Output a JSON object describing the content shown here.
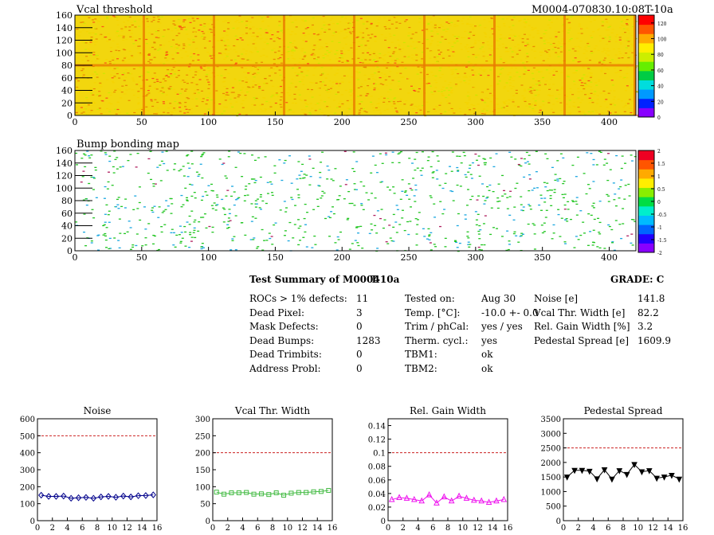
{
  "header": {
    "module_id": "M0004-070830.10:08T-10a"
  },
  "maps": [
    {
      "title": "Vcal threshold",
      "x_ticks": [
        "0",
        "50",
        "100",
        "150",
        "200",
        "250",
        "300",
        "350",
        "400"
      ],
      "y_ticks": [
        "0",
        "20",
        "40",
        "60",
        "80",
        "100",
        "120",
        "140",
        "160"
      ],
      "colorbar_ticks": [
        "0",
        "20",
        "40",
        "60",
        "80",
        "100",
        "120"
      ],
      "roc_grid": {
        "columns": 8,
        "rows": 2
      },
      "colors": [
        "#f5d200",
        "#e87a00",
        "#c8e800",
        "#ff3a1a"
      ]
    },
    {
      "title": "Bump bonding map",
      "x_ticks": [
        "0",
        "50",
        "100",
        "150",
        "200",
        "250",
        "300",
        "350",
        "400"
      ],
      "y_ticks": [
        "0",
        "20",
        "40",
        "60",
        "80",
        "100",
        "120",
        "140",
        "160"
      ],
      "colorbar_ticks": [
        "-2",
        "-1.5",
        "-1",
        "-0.5",
        "0",
        "0.5",
        "1",
        "1.5",
        "2"
      ],
      "colors": [
        "#22c522",
        "#1aa7e0",
        "#b02060"
      ]
    }
  ],
  "summary": {
    "title": "Test Summary of M0004",
    "subtitle": "T-10a",
    "grade": "GRADE:  C",
    "col1": [
      {
        "label": "ROCs > 1% defects:",
        "value": "11"
      },
      {
        "label": "Dead Pixel:",
        "value": "3"
      },
      {
        "label": "Mask Defects:",
        "value": "0"
      },
      {
        "label": "Dead Bumps:",
        "value": "1283"
      },
      {
        "label": "Dead Trimbits:",
        "value": "0"
      },
      {
        "label": "Address Probl:",
        "value": "0"
      }
    ],
    "col2": [
      {
        "label": "Tested on:",
        "value": "Aug 30"
      },
      {
        "label": "Temp. [°C]:",
        "value": "-10.0 +- 0.0"
      },
      {
        "label": "Trim / phCal:",
        "value": "yes / yes"
      },
      {
        "label": "Therm. cycl.:",
        "value": "yes"
      },
      {
        "label": "TBM1:",
        "value": "ok"
      },
      {
        "label": "TBM2:",
        "value": "ok"
      }
    ],
    "col3": [
      {
        "label": "Noise [e]",
        "value": "141.8"
      },
      {
        "label": "Vcal Thr. Width [e]",
        "value": "82.2"
      },
      {
        "label": "Rel. Gain Width [%]",
        "value": "3.2"
      },
      {
        "label": "Pedestal Spread [e]",
        "value": "1609.9"
      }
    ]
  },
  "chart_data": [
    {
      "type": "line",
      "title": "Noise",
      "color": "#00008b",
      "marker": "diamond",
      "x": [
        0,
        1,
        2,
        3,
        4,
        5,
        6,
        7,
        8,
        9,
        10,
        11,
        12,
        13,
        14,
        15
      ],
      "values": [
        150,
        143,
        143,
        145,
        132,
        135,
        137,
        132,
        140,
        143,
        138,
        145,
        140,
        147,
        148,
        152
      ],
      "xlim": [
        0,
        16
      ],
      "ylim": [
        0,
        600
      ],
      "x_ticks": [
        0,
        2,
        4,
        6,
        8,
        10,
        12,
        14,
        16
      ],
      "y_ticks": [
        0,
        100,
        200,
        300,
        400,
        500,
        600
      ],
      "y_tick_labels": [
        "0",
        "100",
        "200",
        "300",
        "400",
        "500",
        "600"
      ],
      "threshold": 500
    },
    {
      "type": "line",
      "title": "Vcal Thr. Width",
      "color": "#44bb44",
      "marker": "square",
      "x": [
        0,
        1,
        2,
        3,
        4,
        5,
        6,
        7,
        8,
        9,
        10,
        11,
        12,
        13,
        14,
        15
      ],
      "values": [
        84,
        78,
        82,
        82,
        83,
        78,
        79,
        77,
        82,
        75,
        81,
        83,
        83,
        85,
        86,
        89
      ],
      "xlim": [
        0,
        16
      ],
      "ylim": [
        0,
        300
      ],
      "x_ticks": [
        0,
        2,
        4,
        6,
        8,
        10,
        12,
        14,
        16
      ],
      "y_ticks": [
        0,
        50,
        100,
        150,
        200,
        250,
        300
      ],
      "y_tick_labels": [
        "0",
        "50",
        "100",
        "150",
        "200",
        "250",
        "300"
      ],
      "threshold": 200
    },
    {
      "type": "line",
      "title": "Rel. Gain Width",
      "color": "#ee11ee",
      "marker": "triangle",
      "x": [
        0,
        1,
        2,
        3,
        4,
        5,
        6,
        7,
        8,
        9,
        10,
        11,
        12,
        13,
        14,
        15
      ],
      "values": [
        0.031,
        0.034,
        0.033,
        0.031,
        0.029,
        0.038,
        0.026,
        0.035,
        0.029,
        0.036,
        0.033,
        0.03,
        0.029,
        0.027,
        0.029,
        0.031
      ],
      "xlim": [
        0,
        16
      ],
      "ylim": [
        0,
        0.15
      ],
      "x_ticks": [
        0,
        2,
        4,
        6,
        8,
        10,
        12,
        14,
        16
      ],
      "y_ticks": [
        0,
        0.02,
        0.04,
        0.06,
        0.08,
        0.1,
        0.12,
        0.14
      ],
      "y_tick_labels": [
        "0",
        "0.02",
        "0.04",
        "0.06",
        "0.08",
        "0.1",
        "0.12",
        "0.14"
      ],
      "threshold": 0.1
    },
    {
      "type": "line",
      "title": "Pedestal Spread",
      "color": "#000000",
      "marker": "triangle-down",
      "x": [
        0,
        1,
        2,
        3,
        4,
        5,
        6,
        7,
        8,
        9,
        10,
        11,
        12,
        13,
        14,
        15
      ],
      "values": [
        1500,
        1730,
        1730,
        1700,
        1440,
        1750,
        1430,
        1720,
        1590,
        1930,
        1680,
        1720,
        1460,
        1500,
        1560,
        1430
      ],
      "xlim": [
        0,
        16
      ],
      "ylim": [
        0,
        3500
      ],
      "x_ticks": [
        0,
        2,
        4,
        6,
        8,
        10,
        12,
        14,
        16
      ],
      "y_ticks": [
        0,
        500,
        1000,
        1500,
        2000,
        2500,
        3000,
        3500
      ],
      "y_tick_labels": [
        "0",
        "500",
        "1000",
        "1500",
        "2000",
        "2500",
        "3000",
        "3500"
      ],
      "threshold": 2500
    }
  ]
}
